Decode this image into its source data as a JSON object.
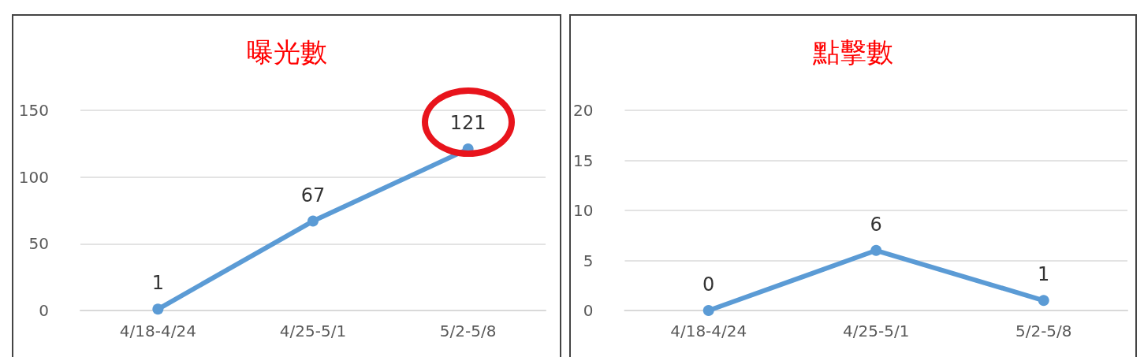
{
  "chart_data": [
    {
      "type": "line",
      "title": "曝光數",
      "categories": [
        "4/18-4/24",
        "4/25-5/1",
        "5/2-5/8"
      ],
      "series": [
        {
          "color": "#5b9bd5",
          "values": [
            1,
            67,
            121
          ]
        }
      ],
      "ylim": [
        0,
        150
      ],
      "yticks": [
        0,
        50,
        100,
        150
      ],
      "grid": "y",
      "marker": "circle",
      "line_style": "solid",
      "data_labels": true
    },
    {
      "type": "line",
      "title": "點擊數",
      "categories": [
        "4/18-4/24",
        "4/25-5/1",
        "5/2-5/8"
      ],
      "series": [
        {
          "color": "#5b9bd5",
          "values": [
            0,
            6,
            1
          ]
        }
      ],
      "ylim": [
        0,
        20
      ],
      "yticks": [
        0,
        5,
        10,
        15,
        20
      ],
      "grid": "y",
      "marker": "circle",
      "line_style": "solid",
      "data_labels": true
    }
  ]
}
